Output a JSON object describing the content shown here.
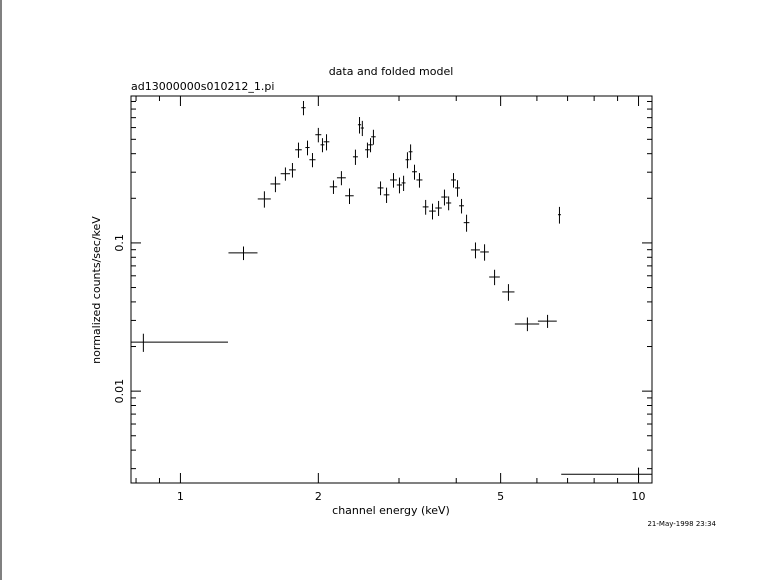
{
  "chart_data": {
    "type": "errorbar",
    "title": "data and folded model",
    "subtitle": "ad13000000s010212_1.pi",
    "x_label": "channel energy (keV)",
    "y_label": "normalized counts/sec/keV",
    "timestamp": "21-May-1998 23:34",
    "log_x": true,
    "log_y": true,
    "color": "#000000",
    "xlim": [
      0.78,
      10.7
    ],
    "ylim": [
      0.0024,
      0.98
    ],
    "xticks": [
      1,
      2,
      5,
      10
    ],
    "xminorticks": [
      0.8,
      0.9,
      3,
      4,
      6,
      7,
      8,
      9
    ],
    "yticks": [
      0.01,
      0.1
    ],
    "yminorticks": [
      0.003,
      0.004,
      0.005,
      0.006,
      0.007,
      0.008,
      0.009,
      0.02,
      0.03,
      0.04,
      0.05,
      0.06,
      0.07,
      0.08,
      0.09,
      0.2,
      0.3,
      0.4,
      0.5,
      0.6,
      0.7,
      0.8,
      0.9
    ],
    "x": [
      0.83,
      1.373,
      1.525,
      1.612,
      1.695,
      1.756,
      1.81,
      1.856,
      1.894,
      1.942,
      2.0,
      2.042,
      2.084,
      2.158,
      2.246,
      2.339,
      2.41,
      2.46,
      2.495,
      2.56,
      2.6,
      2.638,
      2.734,
      2.818,
      2.918,
      3.007,
      3.07,
      3.13,
      3.18,
      3.243,
      3.325,
      3.43,
      3.55,
      3.66,
      3.77,
      3.85,
      3.945,
      4.026,
      4.108,
      4.213,
      4.406,
      4.612,
      4.85,
      5.2,
      5.72,
      6.33,
      6.72,
      10.0
    ],
    "xerr": [
      0.44,
      0.1,
      0.05,
      0.04,
      0.04,
      0.03,
      0.03,
      0.02,
      0.02,
      0.03,
      0.03,
      0.02,
      0.03,
      0.04,
      0.05,
      0.05,
      0.03,
      0.02,
      0.02,
      0.03,
      0.03,
      0.03,
      0.04,
      0.04,
      0.05,
      0.04,
      0.03,
      0.03,
      0.03,
      0.04,
      0.05,
      0.05,
      0.06,
      0.06,
      0.06,
      0.05,
      0.05,
      0.05,
      0.05,
      0.06,
      0.1,
      0.1,
      0.13,
      0.16,
      0.35,
      0.3,
      0.05,
      3.22
    ],
    "values": [
      0.0214,
      0.0856,
      0.198,
      0.25,
      0.293,
      0.311,
      0.425,
      0.817,
      0.44,
      0.364,
      0.537,
      0.459,
      0.481,
      0.239,
      0.275,
      0.208,
      0.381,
      0.627,
      0.596,
      0.425,
      0.459,
      0.52,
      0.235,
      0.211,
      0.266,
      0.246,
      0.254,
      0.364,
      0.412,
      0.302,
      0.266,
      0.175,
      0.164,
      0.172,
      0.204,
      0.186,
      0.266,
      0.235,
      0.178,
      0.137,
      0.0897,
      0.0869,
      0.0589,
      0.0467,
      0.0284,
      0.0297,
      0.155,
      0.00275
    ],
    "yerr": [
      0.003,
      0.009,
      0.025,
      0.03,
      0.03,
      0.035,
      0.05,
      0.09,
      0.05,
      0.04,
      0.06,
      0.05,
      0.06,
      0.025,
      0.03,
      0.025,
      0.045,
      0.08,
      0.07,
      0.05,
      0.05,
      0.06,
      0.025,
      0.025,
      0.03,
      0.03,
      0.03,
      0.045,
      0.05,
      0.035,
      0.03,
      0.02,
      0.02,
      0.02,
      0.025,
      0.02,
      0.03,
      0.03,
      0.02,
      0.018,
      0.011,
      0.011,
      0.007,
      0.006,
      0.003,
      0.003,
      0.02,
      0.0003
    ]
  }
}
